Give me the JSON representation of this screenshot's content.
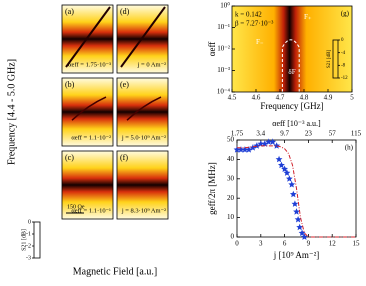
{
  "left_panels": {
    "ylabel": "Frequency [4.4 - 5.0 GHz]",
    "xlabel": "Magnetic Field [a.u.]",
    "scale_bar": "150 Oe",
    "colorbar": {
      "label": "S21 [dB]",
      "ticks": [
        0,
        -1,
        -2,
        -3
      ]
    },
    "panels": [
      {
        "label": "(a)",
        "annotation": "αeff = 1.75·10⁻³"
      },
      {
        "label": "(b)",
        "annotation": "αeff = 1.1·10⁻²"
      },
      {
        "label": "(c)",
        "annotation": "αeff = 1.1·10⁻¹"
      },
      {
        "label": "(d)",
        "annotation": "j = 0 Am⁻²"
      },
      {
        "label": "(e)",
        "annotation": "j = 5.0·10⁹ Am⁻²"
      },
      {
        "label": "(f)",
        "annotation": "j = 8.3·10⁹ Am⁻²"
      }
    ]
  },
  "chart_data": [
    {
      "type": "heatmap",
      "panel": "(g)",
      "xlabel": "Frequency [GHz]",
      "ylabel": "αeff",
      "xlim": [
        4.5,
        5.0
      ],
      "xticks": [
        4.5,
        4.6,
        4.7,
        4.8,
        4.9,
        5.0
      ],
      "ylim": [
        0.0001,
        1
      ],
      "log_y": true,
      "yticks": [
        {
          "value": 0.0001,
          "label": "10⁻⁴"
        },
        {
          "value": 0.001,
          "label": "10⁻³"
        },
        {
          "value": 0.01,
          "label": "10⁻²"
        },
        {
          "value": 0.1,
          "label": "10⁻¹"
        },
        {
          "value": 1,
          "label": "10⁰"
        }
      ],
      "annotations": [
        "k = 0.142",
        "β = 7.27·10⁻³",
        "F₋",
        "F₊",
        "δF"
      ],
      "colorbar": {
        "label": "S21 [dB]",
        "ticks": [
          0,
          -4,
          -8,
          -12
        ]
      }
    },
    {
      "type": "line",
      "panel": "(h)",
      "xlabel": "j [10⁹ Am⁻²]",
      "ylabel": "geff/2π [MHz]",
      "x2label": "αeff [10⁻³ a.u.]",
      "x2ticks": [
        "1.75",
        "3.4",
        "9.7",
        "23",
        "57",
        "115"
      ],
      "xlim": [
        0,
        15
      ],
      "xticks": [
        0,
        3,
        6,
        9,
        12,
        15
      ],
      "ylim": [
        0,
        50
      ],
      "yticks": [
        0,
        10,
        20,
        30,
        40,
        50
      ],
      "series": [
        {
          "marker": "star",
          "color": "#1f3fd6",
          "x": [
            0,
            0.5,
            1,
            1.5,
            2,
            2.5,
            3,
            3.5,
            4,
            4.5,
            5,
            5.3,
            5.6,
            6,
            6.3,
            6.6,
            6.9,
            7.1,
            7.3,
            7.5,
            7.7,
            7.9,
            8.2,
            8.5
          ],
          "values": [
            45,
            45,
            45,
            45,
            46,
            47,
            48,
            48,
            49,
            49,
            47,
            40,
            37,
            35,
            33,
            30,
            27,
            22,
            17,
            13,
            9,
            5,
            2,
            0
          ]
        },
        {
          "line": "dashdot",
          "color": "#d0202a",
          "x": [
            0,
            1,
            2,
            3,
            4,
            5,
            5.5,
            6,
            6.5,
            7,
            7.5,
            8,
            8.5,
            9,
            10,
            15
          ],
          "values": [
            46,
            46,
            46.5,
            47,
            47,
            47,
            46.5,
            45.5,
            43,
            37,
            25,
            10,
            2,
            0,
            0,
            0
          ]
        }
      ]
    }
  ]
}
